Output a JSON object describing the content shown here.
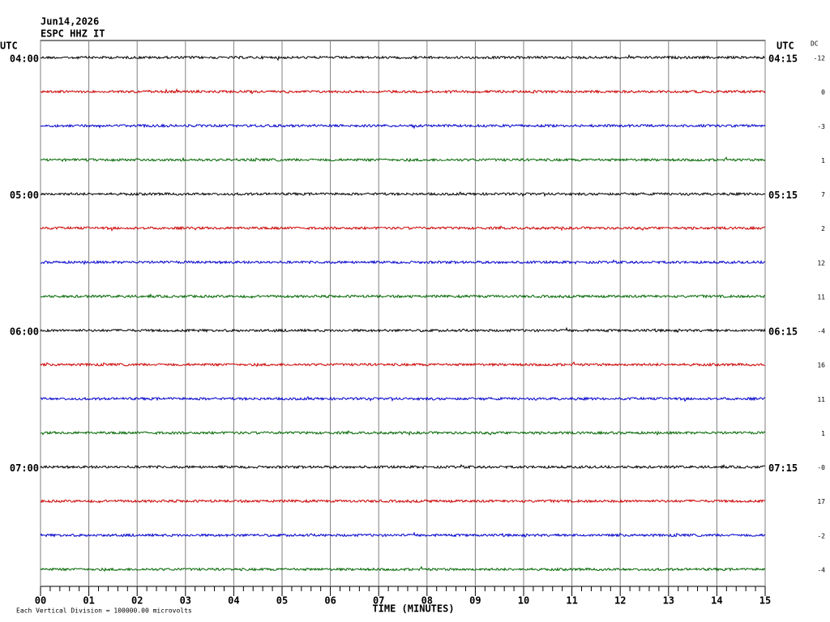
{
  "chart_data": {
    "type": "helicorder",
    "date": "Jun14,2026",
    "station": "ESPC HHZ IT",
    "left_axis_title": "UTC",
    "right_axis_title": "UTC",
    "dc_title": "DC",
    "left_labels": [
      "04:00",
      "05:00",
      "06:00",
      "07:00"
    ],
    "right_labels": [
      "04:15",
      "05:15",
      "06:15",
      "07:15"
    ],
    "trace_colors": [
      "#000000",
      "#cc0000",
      "#0000cc",
      "#006600"
    ],
    "dc_labels": [
      "-12",
      "0",
      "-3",
      "1",
      "7",
      "2",
      "12",
      "11",
      "-4",
      "16",
      "11",
      "1",
      "-0",
      "17",
      "-2",
      "-4"
    ],
    "xlim": [
      0,
      15
    ],
    "xticks": [
      {
        "value": 0,
        "label": "00"
      },
      {
        "value": 1,
        "label": "01"
      },
      {
        "value": 2,
        "label": "02"
      },
      {
        "value": 3,
        "label": "03"
      },
      {
        "value": 4,
        "label": "04"
      },
      {
        "value": 5,
        "label": "05"
      },
      {
        "value": 6,
        "label": "06"
      },
      {
        "value": 7,
        "label": "07"
      },
      {
        "value": 8,
        "label": "08"
      },
      {
        "value": 9,
        "label": "09"
      },
      {
        "value": 10,
        "label": "10"
      },
      {
        "value": 11,
        "label": "11"
      },
      {
        "value": 12,
        "label": "12"
      },
      {
        "value": 13,
        "label": "13"
      },
      {
        "value": 14,
        "label": "14"
      },
      {
        "value": 15,
        "label": "15"
      }
    ],
    "xlabel": "TIME (MINUTES)",
    "footnote": "Each Vertical Division = 100000.00 microvolts"
  }
}
